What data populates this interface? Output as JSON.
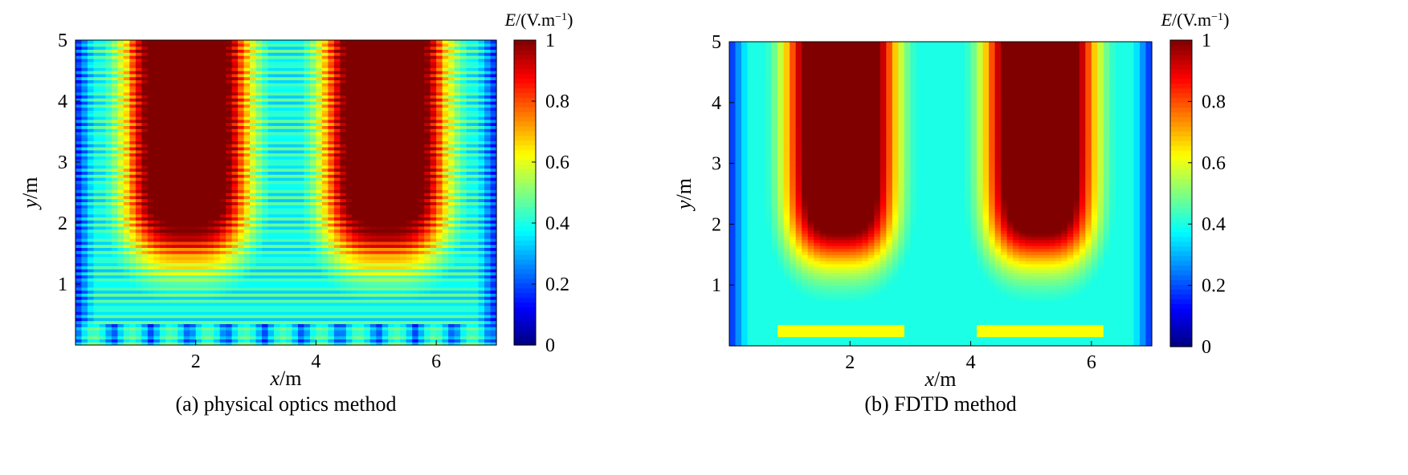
{
  "chart_data": [
    {
      "type": "heatmap",
      "caption": "(a)  physical optics method",
      "xlabel_var": "x",
      "xlabel_unit": "/m",
      "ylabel_var": "y",
      "ylabel_unit": "/m",
      "xlim": [
        0,
        7
      ],
      "ylim": [
        0,
        5
      ],
      "x_ticks": [
        2,
        4,
        6
      ],
      "y_ticks": [
        1,
        2,
        3,
        4,
        5
      ],
      "colorbar": {
        "label_var": "E",
        "label_unit": "/(V.m",
        "label_sup": "−1",
        "label_close": ")",
        "range": [
          0,
          1
        ],
        "ticks": [
          0,
          0.2,
          0.4,
          0.6,
          0.8,
          1
        ],
        "tick_labels": [
          "0",
          "0.2",
          "0.4",
          "0.6",
          "0.8",
          "1"
        ],
        "colormap": "jet"
      },
      "field": {
        "description_free": true,
        "lobes": [
          {
            "cx": 1.85,
            "cy": 3.5,
            "sx": 0.95,
            "sy": 1.6
          },
          {
            "cx": 5.15,
            "cy": 3.5,
            "sx": 0.95,
            "sy": 1.6
          }
        ],
        "center_channel_x": 3.5,
        "striped": true
      }
    },
    {
      "type": "heatmap",
      "caption": "(b)  FDTD method",
      "xlabel_var": "x",
      "xlabel_unit": "/m",
      "ylabel_var": "y",
      "ylabel_unit": "/m",
      "xlim": [
        0,
        7
      ],
      "ylim": [
        0,
        5
      ],
      "x_ticks": [
        2,
        4,
        6
      ],
      "y_ticks": [
        1,
        2,
        3,
        4,
        5
      ],
      "colorbar": {
        "label_var": "E",
        "label_unit": "/(V.m",
        "label_sup": "−1",
        "label_close": ")",
        "range": [
          0,
          1
        ],
        "ticks": [
          0,
          0.2,
          0.4,
          0.6,
          0.8,
          1
        ],
        "tick_labels": [
          "0",
          "0.2",
          "0.4",
          "0.6",
          "0.8",
          "1"
        ],
        "colormap": "jet"
      },
      "field": {
        "lobes": [
          {
            "cx": 1.85,
            "cy": 3.4,
            "sx": 0.85,
            "sy": 1.7
          },
          {
            "cx": 5.15,
            "cy": 3.4,
            "sx": 0.85,
            "sy": 1.7
          }
        ],
        "center_channel_x": 3.5,
        "striped": false
      }
    }
  ]
}
